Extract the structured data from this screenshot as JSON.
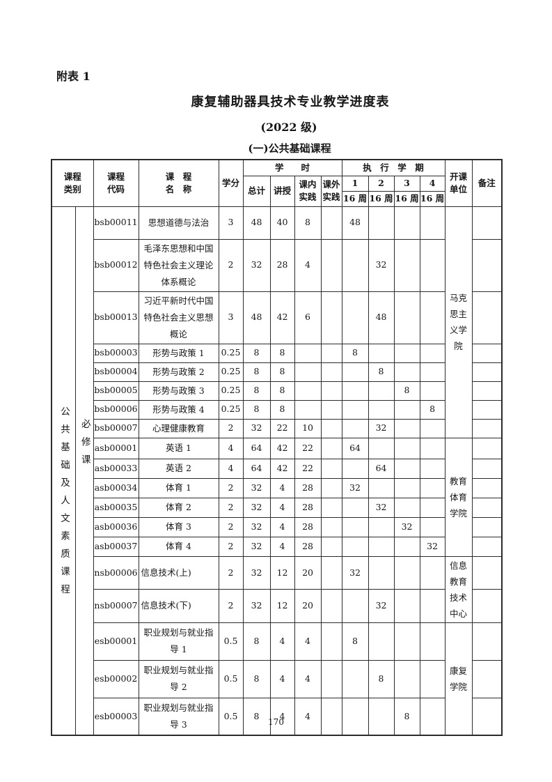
{
  "page": {
    "appendix_label": "附表 1",
    "title": "康复辅助器具技术专业教学进度表",
    "grade": "(2022 级)",
    "section": "(一)公共基础课程",
    "page_number": "170"
  },
  "table": {
    "headers": {
      "category": "课程\n类别",
      "code": "课程\n代码",
      "name": "课　程\n名　称",
      "credit": "学分",
      "hours_group": "学　　时",
      "total": "总计",
      "lecture": "讲授",
      "in_practice": "课内\n实践",
      "out_practice": "课外\n实践",
      "semester_group": "执　行　学　期",
      "unit": "开课\n单位",
      "remark": "备注"
    },
    "semesters": [
      {
        "num": "1",
        "weeks": "16 周"
      },
      {
        "num": "2",
        "weeks": "16 周"
      },
      {
        "num": "3",
        "weeks": "16 周"
      },
      {
        "num": "4",
        "weeks": "16 周"
      }
    ],
    "categories": [
      {
        "label": "公共基础及人文素质课程"
      },
      {
        "label": "必修课"
      }
    ],
    "units": [
      {
        "name": "马克思主义学院"
      },
      {
        "name": "教育体育学院"
      },
      {
        "name": "信息教育技术中心"
      },
      {
        "name": "康复学院"
      }
    ],
    "rows": [
      {
        "code": "bsb00011",
        "name": "思想道德与法治",
        "credit": "3",
        "total": "48",
        "lecture": "40",
        "in_practice": "8",
        "out_practice": "",
        "s1": "48",
        "s2": "",
        "s3": "",
        "s4": ""
      },
      {
        "code": "bsb00012",
        "name": "毛泽东思想和中国特色社会主义理论体系概论",
        "credit": "2",
        "total": "32",
        "lecture": "28",
        "in_practice": "4",
        "out_practice": "",
        "s1": "",
        "s2": "32",
        "s3": "",
        "s4": ""
      },
      {
        "code": "bsb00013",
        "name": "习近平新时代中国特色社会主义思想概论",
        "credit": "3",
        "total": "48",
        "lecture": "42",
        "in_practice": "6",
        "out_practice": "",
        "s1": "",
        "s2": "48",
        "s3": "",
        "s4": ""
      },
      {
        "code": "bsb00003",
        "name": "形势与政策 1",
        "credit": "0.25",
        "total": "8",
        "lecture": "8",
        "in_practice": "",
        "out_practice": "",
        "s1": "8",
        "s2": "",
        "s3": "",
        "s4": ""
      },
      {
        "code": "bsb00004",
        "name": "形势与政策 2",
        "credit": "0.25",
        "total": "8",
        "lecture": "8",
        "in_practice": "",
        "out_practice": "",
        "s1": "",
        "s2": "8",
        "s3": "",
        "s4": ""
      },
      {
        "code": "bsb00005",
        "name": "形势与政策 3",
        "credit": "0.25",
        "total": "8",
        "lecture": "8",
        "in_practice": "",
        "out_practice": "",
        "s1": "",
        "s2": "",
        "s3": "8",
        "s4": ""
      },
      {
        "code": "bsb00006",
        "name": "形势与政策 4",
        "credit": "0.25",
        "total": "8",
        "lecture": "8",
        "in_practice": "",
        "out_practice": "",
        "s1": "",
        "s2": "",
        "s3": "",
        "s4": "8"
      },
      {
        "code": "bsb00007",
        "name": "心理健康教育",
        "credit": "2",
        "total": "32",
        "lecture": "22",
        "in_practice": "10",
        "out_practice": "",
        "s1": "",
        "s2": "32",
        "s3": "",
        "s4": ""
      },
      {
        "code": "asb00001",
        "name": "英语 1",
        "credit": "4",
        "total": "64",
        "lecture": "42",
        "in_practice": "22",
        "out_practice": "",
        "s1": "64",
        "s2": "",
        "s3": "",
        "s4": ""
      },
      {
        "code": "asb00033",
        "name": "英语 2",
        "credit": "4",
        "total": "64",
        "lecture": "42",
        "in_practice": "22",
        "out_practice": "",
        "s1": "",
        "s2": "64",
        "s3": "",
        "s4": ""
      },
      {
        "code": "asb00034",
        "name": "体育 1",
        "credit": "2",
        "total": "32",
        "lecture": "4",
        "in_practice": "28",
        "out_practice": "",
        "s1": "32",
        "s2": "",
        "s3": "",
        "s4": ""
      },
      {
        "code": "asb00035",
        "name": "体育 2",
        "credit": "2",
        "total": "32",
        "lecture": "4",
        "in_practice": "28",
        "out_practice": "",
        "s1": "",
        "s2": "32",
        "s3": "",
        "s4": ""
      },
      {
        "code": "asb00036",
        "name": "体育 3",
        "credit": "2",
        "total": "32",
        "lecture": "4",
        "in_practice": "28",
        "out_practice": "",
        "s1": "",
        "s2": "",
        "s3": "32",
        "s4": ""
      },
      {
        "code": "asb00037",
        "name": "体育 4",
        "credit": "2",
        "total": "32",
        "lecture": "4",
        "in_practice": "28",
        "out_practice": "",
        "s1": "",
        "s2": "",
        "s3": "",
        "s4": "32"
      },
      {
        "code": "nsb00006",
        "name": "信息技术(上)",
        "name_align": "left",
        "credit": "2",
        "total": "32",
        "lecture": "12",
        "in_practice": "20",
        "out_practice": "",
        "s1": "32",
        "s2": "",
        "s3": "",
        "s4": ""
      },
      {
        "code": "nsb00007",
        "name": "信息技术(下)",
        "name_align": "left",
        "credit": "2",
        "total": "32",
        "lecture": "12",
        "in_practice": "20",
        "out_practice": "",
        "s1": "",
        "s2": "32",
        "s3": "",
        "s4": ""
      },
      {
        "code": "esb00001",
        "name": "职业规划与就业指导 1",
        "credit": "0.5",
        "total": "8",
        "lecture": "4",
        "in_practice": "4",
        "out_practice": "",
        "s1": "8",
        "s2": "",
        "s3": "",
        "s4": ""
      },
      {
        "code": "esb00002",
        "name": "职业规划与就业指导 2",
        "credit": "0.5",
        "total": "8",
        "lecture": "4",
        "in_practice": "4",
        "out_practice": "",
        "s1": "",
        "s2": "8",
        "s3": "",
        "s4": ""
      },
      {
        "code": "esb00003",
        "name": "职业规划与就业指导 3",
        "credit": "0.5",
        "total": "8",
        "lecture": "4",
        "in_practice": "4",
        "out_practice": "",
        "s1": "",
        "s2": "",
        "s3": "8",
        "s4": ""
      }
    ]
  }
}
